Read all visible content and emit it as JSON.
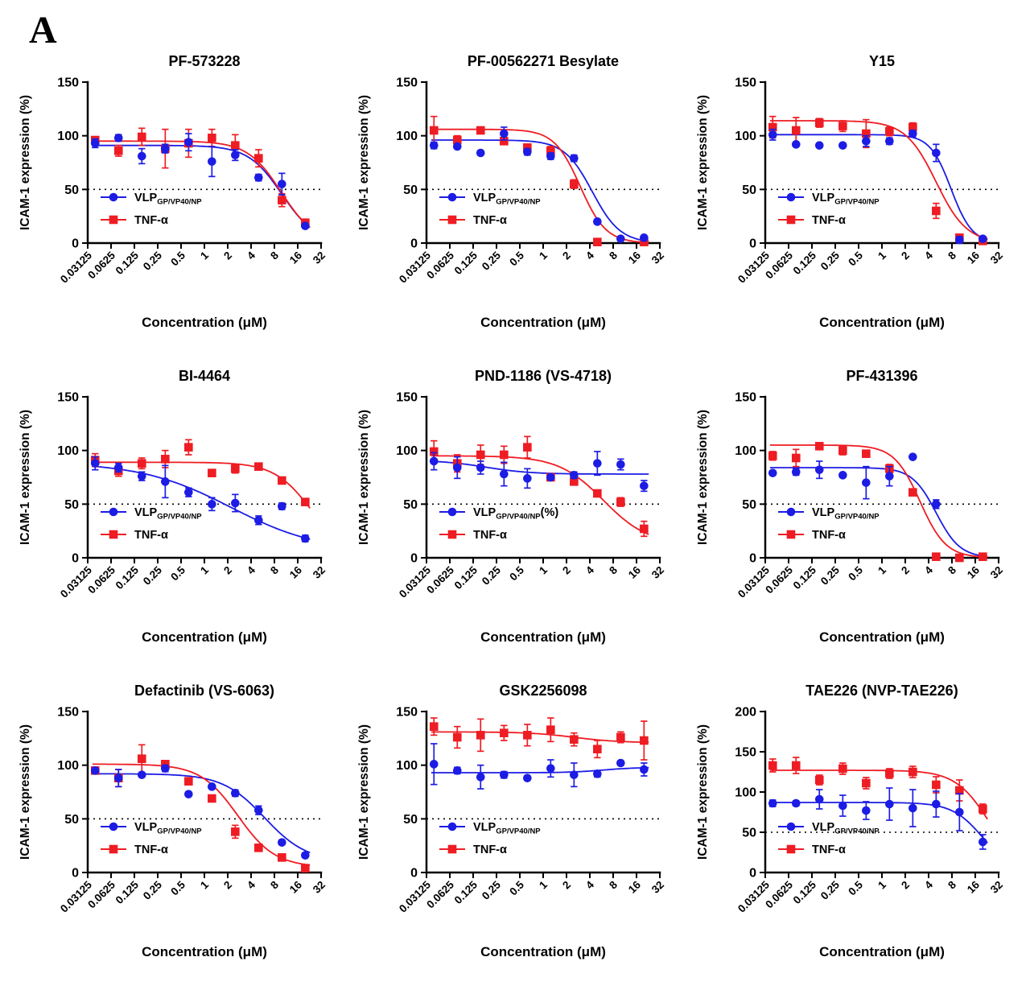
{
  "panel_label": "A",
  "axes": {
    "xlabel": "Concentration (μM)",
    "ylabel": "ICAM-1 expression (%)",
    "xtick_labels": [
      "0.03125",
      "0.0625",
      "0.125",
      "0.25",
      "0.5",
      "1",
      "2",
      "4",
      "8",
      "16",
      "32"
    ],
    "xtick_values": [
      0.03125,
      0.0625,
      0.125,
      0.25,
      0.5,
      1,
      2,
      4,
      8,
      16,
      32
    ],
    "xlim": [
      0.03125,
      32
    ],
    "log_x": true,
    "reference_line": 50
  },
  "colors": {
    "vlp_blue": "#1c1ce4",
    "tnf_red": "#ee1c23",
    "axis": "#000000"
  },
  "chart_data": {
    "type": "line",
    "x_values": [
      0.039,
      0.078,
      0.156,
      0.3125,
      0.625,
      1.25,
      2.5,
      5,
      10,
      20
    ],
    "legend_position": "lower-left-inside",
    "grid": false,
    "charts": [
      {
        "title": "PF-573228",
        "ylim": [
          0,
          150
        ],
        "yticks": [
          0,
          50,
          100,
          150
        ],
        "series": [
          {
            "key": "vlp",
            "label_main": "VLP",
            "label_sub": "GP/VP40/NP",
            "label_suffix": "",
            "color": "#1c1ce4",
            "marker": "circle",
            "values": [
              93,
              98,
              81,
              88,
              94,
              76,
              82,
              61,
              55,
              16
            ],
            "errors": [
              4,
              3,
              7,
              4,
              8,
              14,
              5,
              3,
              10,
              2
            ],
            "fit": {
              "y0": 91,
              "yinf": 0,
              "ec50": 10,
              "hill": 2.0
            }
          },
          {
            "key": "tnf",
            "label_main": "TNF-α",
            "label_sub": "",
            "label_suffix": "",
            "color": "#ee1c23",
            "marker": "square",
            "values": [
              96,
              86,
              99,
              88,
              93,
              98,
              91,
              79,
              40,
              19
            ],
            "errors": [
              3,
              5,
              8,
              18,
              13,
              8,
              10,
              8,
              6,
              2
            ],
            "fit": {
              "y0": 95,
              "yinf": 0,
              "ec50": 9.8,
              "hill": 2.0
            }
          }
        ]
      },
      {
        "title": "PF-00562271 Besylate",
        "ylim": [
          0,
          150
        ],
        "yticks": [
          0,
          50,
          100,
          150
        ],
        "series": [
          {
            "key": "vlp",
            "label_main": "VLP",
            "label_sub": "GP/VP40/NP",
            "label_suffix": "",
            "color": "#1c1ce4",
            "marker": "circle",
            "values": [
              91,
              90,
              84,
              102,
              85,
              81,
              79,
              20,
              4,
              5
            ],
            "errors": [
              3,
              2,
              2,
              6,
              3,
              3,
              3,
              2,
              1,
              2
            ],
            "fit": {
              "y0": 96,
              "yinf": 0,
              "ec50": 4.3,
              "hill": 2.4
            }
          },
          {
            "key": "tnf",
            "label_main": "TNF-α",
            "label_sub": "",
            "label_suffix": "",
            "color": "#ee1c23",
            "marker": "square",
            "values": [
              105,
              96,
              105,
              95,
              89,
              86,
              55,
              1,
              null,
              1
            ],
            "errors": [
              13,
              4,
              3,
              3,
              3,
              4,
              4,
              1,
              null,
              1
            ],
            "fit": {
              "y0": 106,
              "yinf": 0,
              "ec50": 3.0,
              "hill": 2.6
            }
          }
        ]
      },
      {
        "title": "Y15",
        "ylim": [
          0,
          150
        ],
        "yticks": [
          0,
          50,
          100,
          150
        ],
        "series": [
          {
            "key": "vlp",
            "label_main": "VLP",
            "label_sub": "GP/VP40/NP",
            "label_suffix": "",
            "color": "#1c1ce4",
            "marker": "circle",
            "values": [
              101,
              92,
              91,
              91,
              95,
              95,
              102,
              84,
              3,
              4
            ],
            "errors": [
              5,
              2,
              2,
              2,
              5,
              3,
              3,
              8,
              3,
              2
            ],
            "fit": {
              "y0": 101,
              "yinf": 0,
              "ec50": 7.8,
              "hill": 3.2
            }
          },
          {
            "key": "tnf",
            "label_main": "TNF-α",
            "label_sub": "",
            "label_suffix": "",
            "color": "#ee1c23",
            "marker": "square",
            "values": [
              108,
              105,
              112,
              109,
              102,
              104,
              108,
              30,
              5,
              2
            ],
            "errors": [
              10,
              12,
              4,
              5,
              13,
              4,
              4,
              7,
              2,
              1
            ],
            "fit": {
              "y0": 114,
              "yinf": 0,
              "ec50": 5.0,
              "hill": 2.2
            }
          }
        ]
      },
      {
        "title": "BI-4464",
        "ylim": [
          0,
          150
        ],
        "yticks": [
          0,
          50,
          100,
          150
        ],
        "series": [
          {
            "key": "vlp",
            "label_main": "VLP",
            "label_sub": "GP/VP40/NP",
            "label_suffix": "",
            "color": "#1c1ce4",
            "marker": "circle",
            "values": [
              88,
              84,
              76,
              71,
              61,
              50,
              51,
              35,
              48,
              18
            ],
            "errors": [
              6,
              4,
              4,
              15,
              4,
              6,
              8,
              4,
              3,
              3
            ],
            "fit": {
              "y0": 89,
              "yinf": 5,
              "ec50": 2.2,
              "hill": 0.75
            }
          },
          {
            "key": "tnf",
            "label_main": "TNF-α",
            "label_sub": "",
            "label_suffix": "",
            "color": "#ee1c23",
            "marker": "square",
            "values": [
              91,
              81,
              88,
              92,
              103,
              79,
              83,
              85,
              72,
              52
            ],
            "errors": [
              6,
              5,
              5,
              8,
              7,
              3,
              4,
              3,
              3,
              2
            ],
            "fit": {
              "y0": 89,
              "yinf": 0,
              "ec50": 24,
              "hill": 1.8
            }
          }
        ]
      },
      {
        "title": "PND-1186 (VS-4718)",
        "ylim": [
          0,
          150
        ],
        "yticks": [
          0,
          50,
          100,
          150
        ],
        "series": [
          {
            "key": "vlp",
            "label_main": "VLP",
            "label_sub": "GP/VP40/NP",
            "label_suffix": "(%)",
            "color": "#1c1ce4",
            "marker": "circle",
            "values": [
              90,
              84,
              84,
              78,
              74,
              75,
              77,
              88,
              87,
              67
            ],
            "errors": [
              8,
              10,
              6,
              11,
              9,
              2,
              3,
              11,
              5,
              5
            ],
            "fit": {
              "y0": 91,
              "yinf": 78,
              "ec50": 0.18,
              "hill": 1.5
            }
          },
          {
            "key": "tnf",
            "label_main": "TNF-α",
            "label_sub": "",
            "label_suffix": "",
            "color": "#ee1c23",
            "marker": "square",
            "values": [
              99,
              88,
              96,
              96,
              103,
              75,
              71,
              60,
              52,
              27
            ],
            "errors": [
              10,
              8,
              9,
              8,
              10,
              2,
              3,
              3,
              4,
              7
            ],
            "fit": {
              "y0": 95,
              "yinf": 12,
              "ec50": 6.0,
              "hill": 1.5
            }
          }
        ]
      },
      {
        "title": "PF-431396",
        "ylim": [
          0,
          150
        ],
        "yticks": [
          0,
          50,
          100,
          150
        ],
        "series": [
          {
            "key": "vlp",
            "label_main": "VLP",
            "label_sub": "GP/VP40/NP",
            "label_suffix": "",
            "color": "#1c1ce4",
            "marker": "circle",
            "values": [
              79,
              80,
              82,
              77,
              70,
              76,
              94,
              50,
              null,
              null
            ],
            "errors": [
              2,
              3,
              8,
              2,
              15,
              9,
              0,
              4,
              null,
              null
            ],
            "fit": {
              "y0": 84,
              "yinf": 0,
              "ec50": 5.0,
              "hill": 2.8
            }
          },
          {
            "key": "tnf",
            "label_main": "TNF-α",
            "label_sub": "",
            "label_suffix": "",
            "color": "#ee1c23",
            "marker": "square",
            "values": [
              95,
              93,
              104,
              100,
              97,
              83,
              61,
              1,
              0,
              1
            ],
            "errors": [
              4,
              8,
              3,
              4,
              3,
              4,
              3,
              1,
              1,
              1
            ],
            "fit": {
              "y0": 105,
              "yinf": 0,
              "ec50": 3.1,
              "hill": 2.6
            }
          }
        ]
      },
      {
        "title": "Defactinib (VS-6063)",
        "ylim": [
          0,
          150
        ],
        "yticks": [
          0,
          50,
          100,
          150
        ],
        "series": [
          {
            "key": "vlp",
            "label_main": "VLP",
            "label_sub": "GP/VP40/NP",
            "label_suffix": "",
            "color": "#1c1ce4",
            "marker": "circle",
            "values": [
              95,
              88,
              91,
              97,
              73,
              80,
              74,
              58,
              28,
              16
            ],
            "errors": [
              2,
              8,
              2,
              3,
              2,
              2,
              3,
              4,
              2,
              2
            ],
            "fit": {
              "y0": 92,
              "yinf": 10,
              "ec50": 6.0,
              "hill": 1.6
            }
          },
          {
            "key": "tnf",
            "label_main": "TNF-α",
            "label_sub": "",
            "label_suffix": "",
            "color": "#ee1c23",
            "marker": "square",
            "values": [
              95,
              88,
              106,
              101,
              85,
              69,
              38,
              23,
              14,
              4
            ],
            "errors": [
              2,
              8,
              13,
              3,
              3,
              3,
              6,
              3,
              2,
              2
            ],
            "fit": {
              "y0": 101,
              "yinf": 5,
              "ec50": 2.7,
              "hill": 1.8
            }
          }
        ]
      },
      {
        "title": "GSK2256098",
        "ylim": [
          0,
          150
        ],
        "yticks": [
          0,
          50,
          100,
          150
        ],
        "series": [
          {
            "key": "vlp",
            "label_main": "VLP",
            "label_sub": "GP/VP40/NP",
            "label_suffix": "",
            "color": "#1c1ce4",
            "marker": "circle",
            "values": [
              101,
              95,
              89,
              91,
              88,
              97,
              91,
              92,
              102,
              96
            ],
            "errors": [
              19,
              3,
              11,
              3,
              2,
              8,
              11,
              3,
              2,
              6
            ],
            "fit": {
              "y0": 93,
              "yinf": 98,
              "ec50": 6.0,
              "hill": 2.0
            }
          },
          {
            "key": "tnf",
            "label_main": "TNF-α",
            "label_sub": "",
            "label_suffix": "",
            "color": "#ee1c23",
            "marker": "square",
            "values": [
              136,
              126,
              128,
              130,
              128,
              133,
              124,
              115,
              126,
              123
            ],
            "errors": [
              8,
              10,
              15,
              7,
              10,
              11,
              6,
              8,
              5,
              18
            ],
            "fit": {
              "y0": 131,
              "yinf": 121,
              "ec50": 2.5,
              "hill": 1.5
            }
          }
        ]
      },
      {
        "title": "TAE226 (NVP-TAE226)",
        "ylim": [
          0,
          200
        ],
        "yticks": [
          0,
          50,
          100,
          150,
          200
        ],
        "series": [
          {
            "key": "vlp",
            "label_main": "VLP",
            "label_sub": "GP/VP40/NP",
            "label_suffix": "",
            "color": "#1c1ce4",
            "marker": "circle",
            "values": [
              86,
              86,
              91,
              83,
              77,
              85,
              80,
              85,
              75,
              38
            ],
            "errors": [
              4,
              3,
              12,
              13,
              11,
              20,
              23,
              16,
              23,
              9
            ],
            "fit": {
              "y0": 87,
              "yinf": 0,
              "ec50": 20,
              "hill": 2.2
            }
          },
          {
            "key": "tnf",
            "label_main": "TNF-α",
            "label_sub": "",
            "label_suffix": "",
            "color": "#ee1c23",
            "marker": "square",
            "values": [
              133,
              133,
              115,
              129,
              111,
              123,
              125,
              109,
              102,
              79
            ],
            "errors": [
              8,
              10,
              6,
              7,
              7,
              6,
              7,
              10,
              13,
              6
            ],
            "fit": {
              "y0": 127,
              "yinf": 0,
              "ec50": 24,
              "hill": 2.0
            }
          }
        ]
      }
    ]
  }
}
